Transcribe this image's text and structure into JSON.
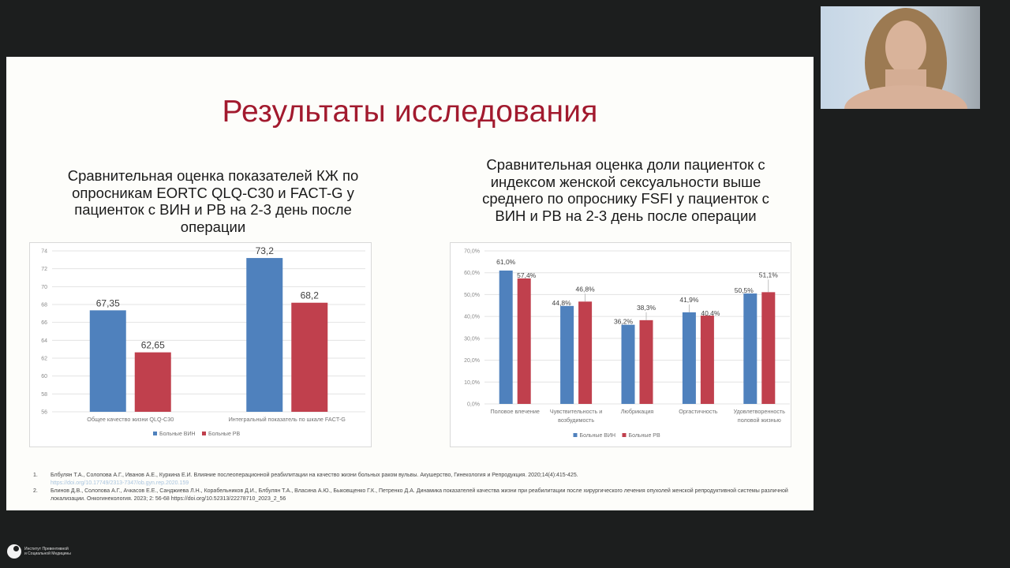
{
  "slide": {
    "title": "Результаты исследования",
    "left_chart_title": "Сравнительная оценка показателей КЖ по опросникам EORTC QLQ-C30 и FACT-G у пациенток с ВИН и РВ на 2-3 день после операции",
    "right_chart_title": "Сравнительная оценка доли пациенток с индексом женской сексуальности выше среднего по опроснику FSFI у пациенток с ВИН и РВ на 2-3 день после операции"
  },
  "colors": {
    "series_vin": "#4f81bd",
    "series_rv": "#c0404d",
    "title": "#a21a2e"
  },
  "chart_data": [
    {
      "type": "bar",
      "title": "Сравнительная оценка показателей КЖ по опросникам EORTC QLQ-C30 и FACT-G у пациенток с ВИН и РВ на 2-3 день после операции",
      "categories": [
        "Общее качество жизни QLQ-C30",
        "Интегральный показатель по шкале FACT-G"
      ],
      "series": [
        {
          "name": "Больные ВИН",
          "values": [
            67.35,
            73.2
          ],
          "labels": [
            "67,35",
            "73,2"
          ]
        },
        {
          "name": "Больные РВ",
          "values": [
            62.65,
            68.2
          ],
          "labels": [
            "62,65",
            "68,2"
          ]
        }
      ],
      "yticks": [
        "56",
        "58",
        "60",
        "62",
        "64",
        "66",
        "68",
        "70",
        "72",
        "74"
      ],
      "ylim": [
        56,
        74
      ],
      "xlabel": "",
      "ylabel": "",
      "grid": true,
      "legend_position": "bottom"
    },
    {
      "type": "bar",
      "title": "Сравнительная оценка доли пациенток с индексом женской сексуальности выше среднего по опроснику FSFI у пациенток с ВИН и РВ на 2-3 день после операции",
      "categories": [
        "Половое влечение",
        "Чувствительность и возбудимость",
        "Любрикация",
        "Оргастичность",
        "Удовлетворенность половой жизнью"
      ],
      "category_lines": [
        [
          "Половое влечение"
        ],
        [
          "Чувствительность и",
          "возбудимость"
        ],
        [
          "Любрикация"
        ],
        [
          "Оргастичность"
        ],
        [
          "Удовлетворенность",
          "половой жизнью"
        ]
      ],
      "series": [
        {
          "name": "Больные ВИН",
          "values": [
            61.0,
            44.8,
            36.2,
            41.9,
            50.5
          ],
          "labels": [
            "61,0%",
            "44,8%",
            "36,2%",
            "41,9%",
            "50,5%"
          ]
        },
        {
          "name": "Больные РВ",
          "values": [
            57.4,
            46.8,
            38.3,
            40.4,
            51.1
          ],
          "labels": [
            "57,4%",
            "46,8%",
            "38,3%",
            "40,4%",
            "51,1%"
          ]
        }
      ],
      "yticks": [
        "0,0%",
        "10,0%",
        "20,0%",
        "30,0%",
        "40,0%",
        "50,0%",
        "60,0%",
        "70,0%"
      ],
      "ylim": [
        0,
        70
      ],
      "xlabel": "",
      "ylabel": "",
      "grid": true,
      "legend_position": "bottom"
    }
  ],
  "references": [
    {
      "num": "1.",
      "text": "Блбулян Т.А., Солопова А.Г., Иванов А.Е., Куркина Е.И. Влияние послеоперационной реабилитации на качество жизни больных раком вульвы. Акушерство, Гинекология и Репродукция. 2020;14(4):415-425.",
      "link": "https://doi.org/10.17749/2313-7347/ob.gyn.rep.2020.159"
    },
    {
      "num": "2.",
      "text": "Блинов Д.В., Солопова А.Г., Ачкасов Е.Е., Санджиева Л.Н., Корабельников Д.И., Блбулян Т.А., Власина А.Ю., Быковщенко Г.К., Петренко Д.А. Динамика показателей качества жизни при реабилитации после хирургического лечения опухолей женской репродуктивной системы различной локализации. Онкогинекология. 2023; 2: 56-68 https://doi.org/10.52313/22278710_2023_2_56"
    }
  ],
  "logo": {
    "line1": "Институт Превентивной",
    "line2": "и Социальной Медицины"
  }
}
